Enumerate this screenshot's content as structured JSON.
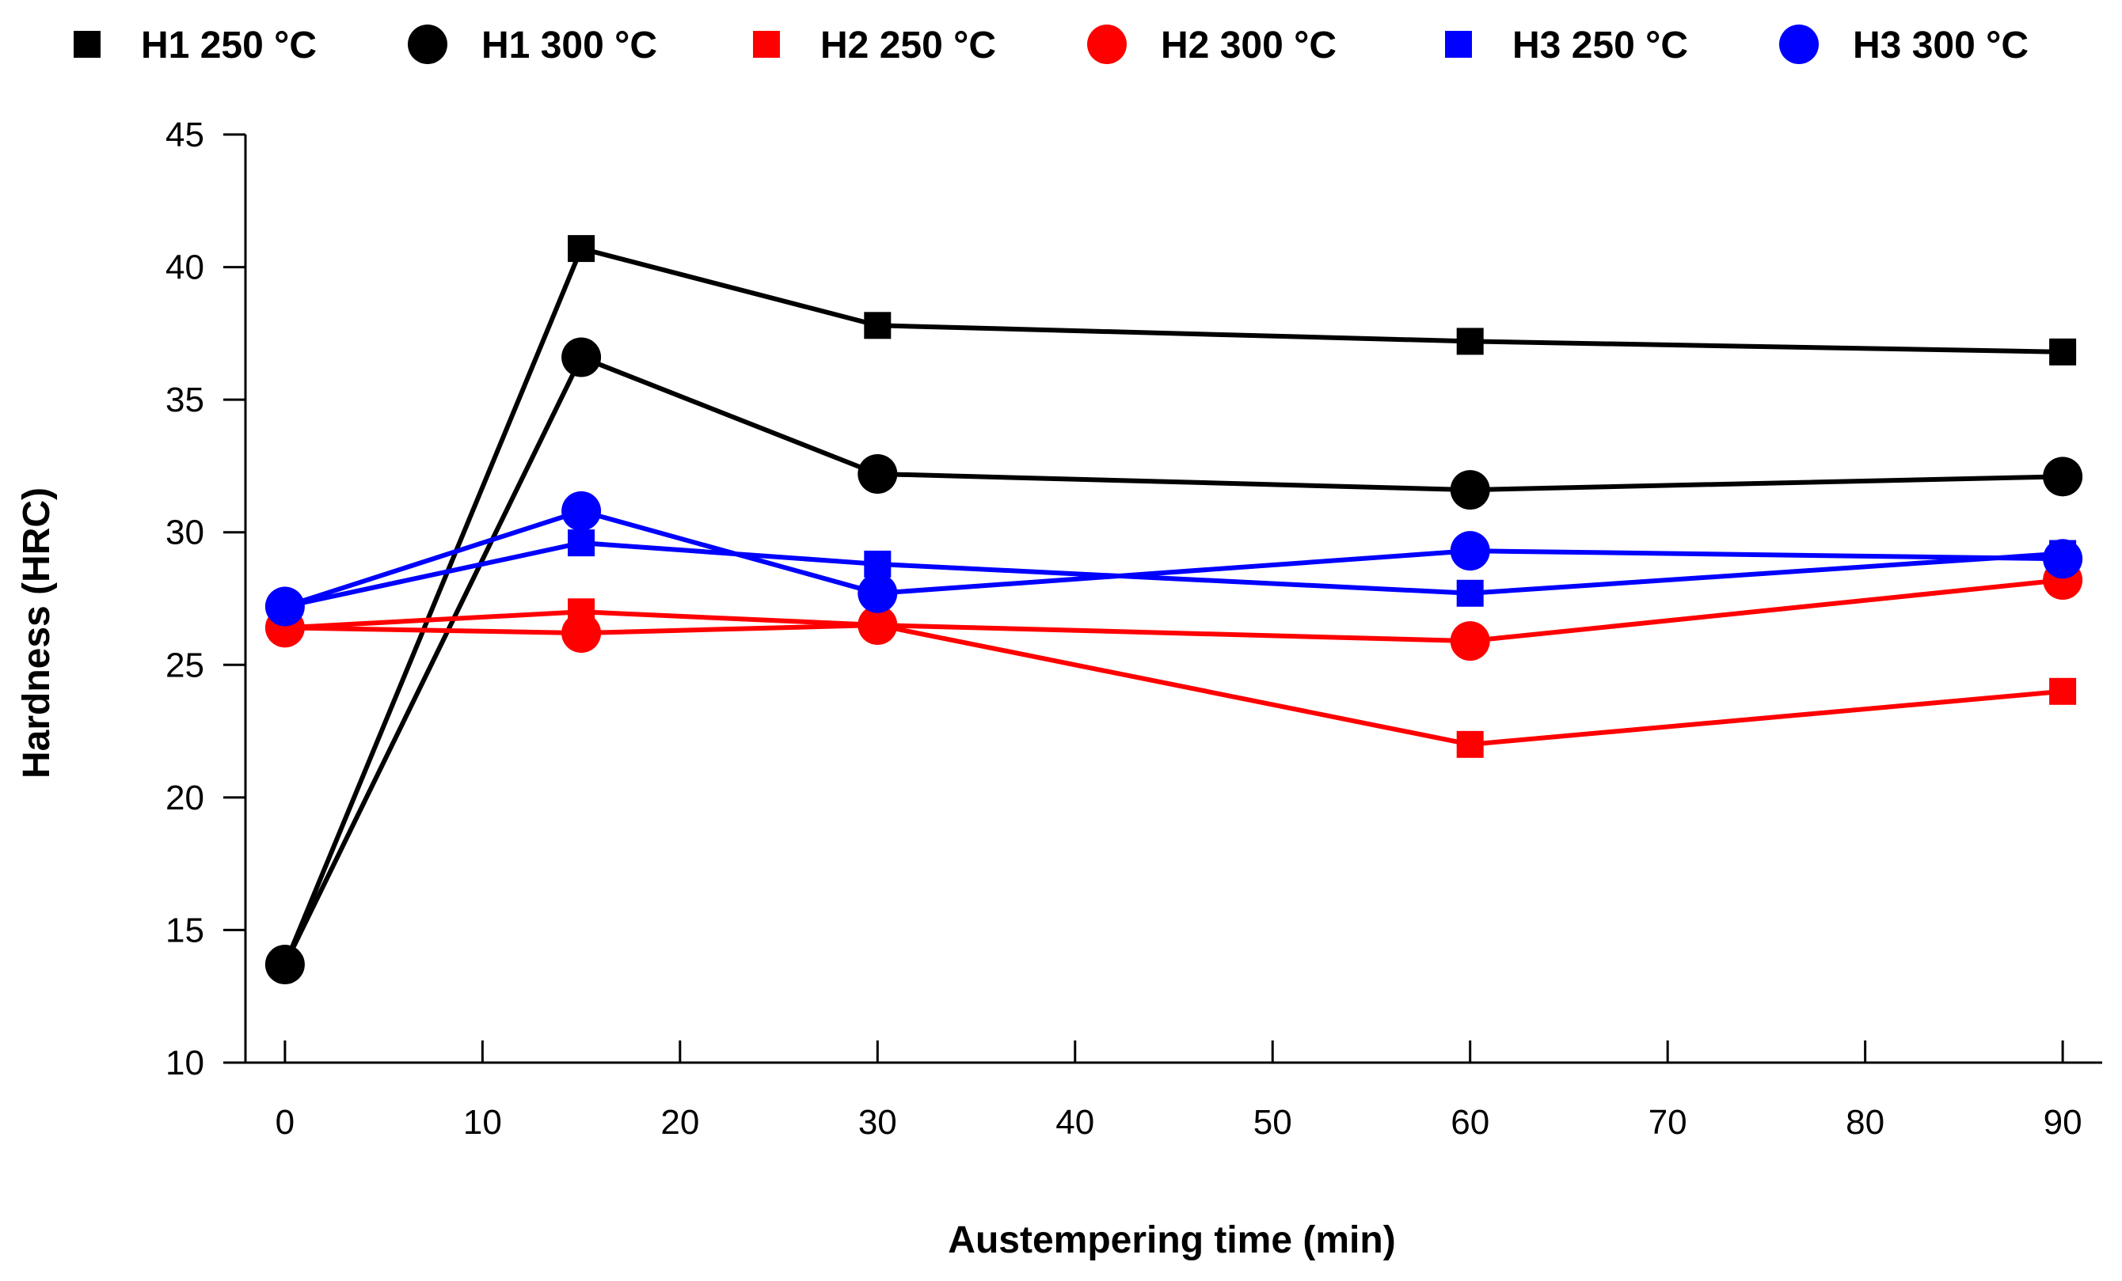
{
  "chart_data": {
    "type": "line",
    "title": "",
    "xlabel": "Austempering time (min)",
    "ylabel": "Hardness (HRC)",
    "xlim": [
      -2,
      92
    ],
    "ylim": [
      10,
      45
    ],
    "xticks": [
      0,
      10,
      20,
      30,
      40,
      50,
      60,
      70,
      80,
      90
    ],
    "yticks": [
      10,
      15,
      20,
      25,
      30,
      35,
      40,
      45
    ],
    "legend_position": "top",
    "grid": false,
    "series": [
      {
        "name": "H1 250 °C",
        "marker": "square",
        "color": "#000000",
        "x": [
          0,
          15,
          30,
          60,
          90
        ],
        "y": [
          13.7,
          40.7,
          37.8,
          37.2,
          36.8
        ]
      },
      {
        "name": "H1 300 °C",
        "marker": "circle",
        "color": "#000000",
        "x": [
          0,
          15,
          30,
          60,
          90
        ],
        "y": [
          13.7,
          36.6,
          32.2,
          31.6,
          32.1
        ]
      },
      {
        "name": "H2 250 °C",
        "marker": "square",
        "color": "#ff0000",
        "x": [
          0,
          15,
          30,
          60,
          90
        ],
        "y": [
          26.4,
          27.0,
          26.5,
          22.0,
          24.0
        ]
      },
      {
        "name": "H2 300 °C",
        "marker": "circle",
        "color": "#ff0000",
        "x": [
          0,
          15,
          30,
          60,
          90
        ],
        "y": [
          26.4,
          26.2,
          26.5,
          25.9,
          28.2
        ]
      },
      {
        "name": "H3 250 °C",
        "marker": "square",
        "color": "#0000ff",
        "x": [
          0,
          15,
          30,
          60,
          90
        ],
        "y": [
          27.2,
          29.6,
          28.8,
          27.7,
          29.2
        ]
      },
      {
        "name": "H3 300 °C",
        "marker": "circle",
        "color": "#0000ff",
        "x": [
          0,
          15,
          30,
          60,
          90
        ],
        "y": [
          27.2,
          30.8,
          27.7,
          29.3,
          29.0
        ]
      }
    ]
  }
}
